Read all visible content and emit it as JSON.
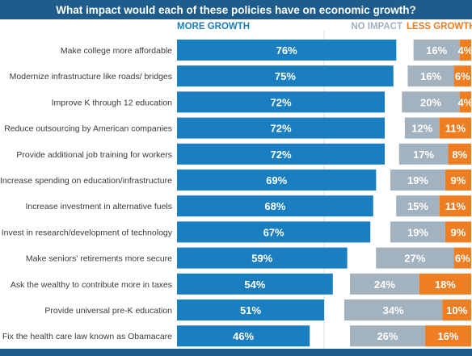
{
  "title": "What impact would each of these policies have on economic growth?",
  "colors": {
    "more": "#1a7fc1",
    "none": "#a3b2bf",
    "less": "#ef7d22",
    "header_bar": "#1e5c8c"
  },
  "chart_data": {
    "type": "bar",
    "orientation": "horizontal",
    "categories": [
      "Make college more affordable",
      "Modernize infrastructure like roads/ bridges",
      "Improve K through 12 education",
      "Reduce outsourcing by American companies",
      "Provide additional job training for workers",
      "Increase spending on education/infrastructure",
      "Increase investment in alternative fuels",
      "Invest in research/development of technology",
      "Make seniors' retirements more secure",
      "Ask the wealthy to contribute more in taxes",
      "Provide universal pre-K education",
      "Fix the health care law known as Obamacare"
    ],
    "series": [
      {
        "name": "MORE GROWTH",
        "values": [
          76,
          75,
          72,
          72,
          72,
          69,
          68,
          67,
          59,
          54,
          51,
          46
        ]
      },
      {
        "name": "NO IMPACT",
        "values": [
          16,
          16,
          20,
          12,
          17,
          19,
          15,
          19,
          27,
          24,
          34,
          26
        ]
      },
      {
        "name": "LESS GROWTH",
        "values": [
          4,
          6,
          4,
          11,
          8,
          9,
          11,
          9,
          6,
          18,
          10,
          16
        ]
      }
    ],
    "value_suffix": "%",
    "legend": "top"
  }
}
